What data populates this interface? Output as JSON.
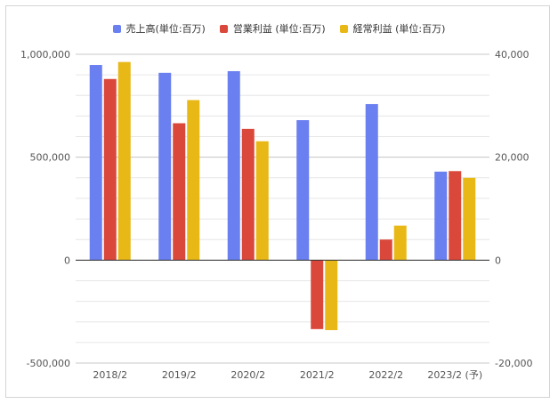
{
  "chart_data": {
    "type": "bar",
    "categories": [
      "2018/2",
      "2019/2",
      "2020/2",
      "2021/2",
      "2022/2",
      "2023/2 (予)"
    ],
    "series": [
      {
        "name": "売上高(単位:百万)",
        "axis": "left",
        "color": "#6a7ff0",
        "values": [
          948000,
          910000,
          918000,
          680000,
          758000,
          430000
        ]
      },
      {
        "name": "営業利益 (単位:百万)",
        "axis": "right",
        "color": "#d9483b",
        "values": [
          35200,
          26600,
          25500,
          -13400,
          4000,
          17300
        ]
      },
      {
        "name": "経常利益 (単位:百万)",
        "axis": "right",
        "color": "#e8b817",
        "values": [
          38500,
          31100,
          23100,
          -13600,
          6700,
          16000
        ]
      }
    ],
    "y_left": {
      "min": -500000,
      "max": 1000000,
      "ticks": [
        1000000,
        500000,
        0,
        -500000
      ],
      "tick_labels": [
        "1,000,000",
        "500,000",
        "0",
        "-500,000"
      ]
    },
    "y_right": {
      "min": -20000,
      "max": 40000,
      "ticks": [
        40000,
        20000,
        0,
        -20000
      ],
      "tick_labels": [
        "40,000",
        "20,000",
        "0",
        "-20,000"
      ]
    },
    "grid": true,
    "legend_position": "top"
  }
}
